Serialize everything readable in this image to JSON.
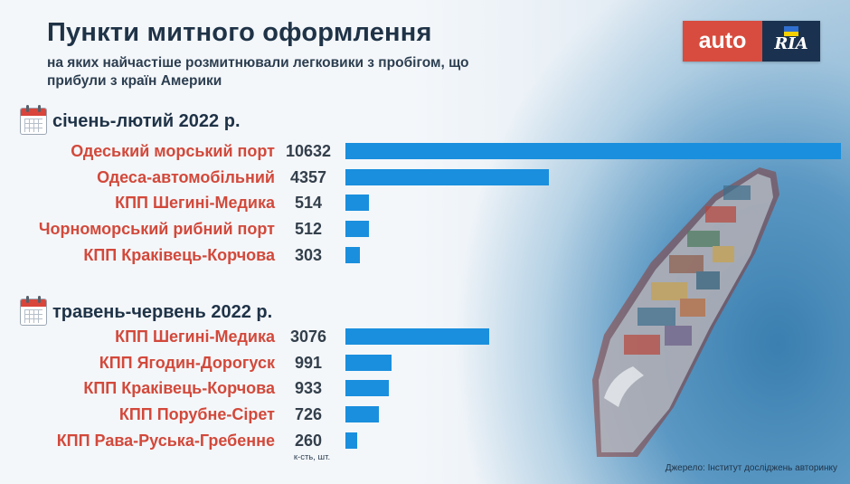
{
  "title": "Пункти митного оформлення",
  "subtitle": "на яких найчастіше розмитнювали легковики з пробігом, що прибули з країн Америки",
  "logo": {
    "left": "auto",
    "right": "RIA"
  },
  "colors": {
    "bar": "#1a8fdd",
    "label": "#d2493b",
    "title": "#1f3347"
  },
  "icons": [
    "calendar-icon",
    "ukraine-flag-icon"
  ],
  "chart_data": [
    {
      "type": "bar",
      "orientation": "horizontal",
      "title": "січень-лютий 2022 р.",
      "categories": [
        "Одеський морський порт",
        "Одеса-автомобільний",
        "КПП Шегині-Медика",
        "Чорноморський рибний порт",
        "КПП Краківець-Корчова"
      ],
      "values": [
        10632,
        4357,
        514,
        512,
        303
      ],
      "xlim": [
        0,
        10632
      ]
    },
    {
      "type": "bar",
      "orientation": "horizontal",
      "title": "травень-червень 2022 р.",
      "categories": [
        "КПП Шегині-Медика",
        "КПП Ягодин-Дорогуск",
        "КПП Краківець-Корчова",
        "КПП Порубне-Сірет",
        "КПП Рава-Руська-Гребенне"
      ],
      "values": [
        3076,
        991,
        933,
        726,
        260
      ],
      "xlim": [
        0,
        10632
      ]
    }
  ],
  "unit_note": "к-сть, шт.",
  "source": "Джерело: Інститут досліджень авторинку"
}
